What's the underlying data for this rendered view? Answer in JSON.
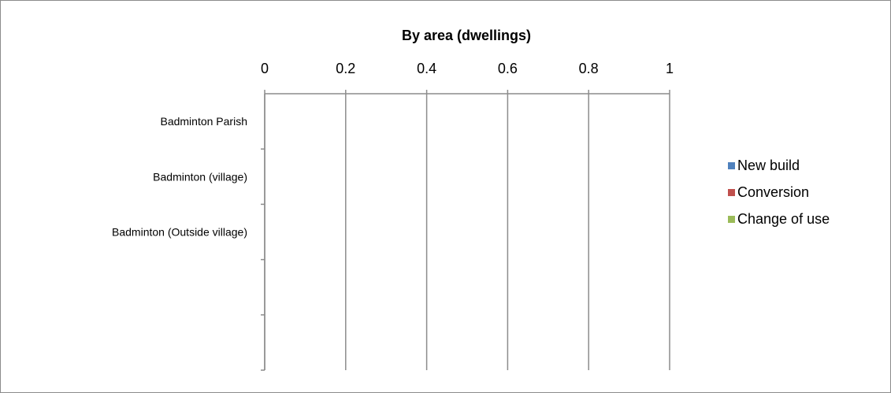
{
  "chart_data": {
    "type": "bar",
    "orientation": "horizontal",
    "stacked": true,
    "title": "By area (dwellings)",
    "categories": [
      "Badminton Parish",
      "Badminton (village)",
      "Badminton (Outside village)",
      "",
      ""
    ],
    "series": [
      {
        "name": "New build",
        "color": "#4f81bd",
        "values": [
          0,
          0,
          0,
          0,
          0
        ]
      },
      {
        "name": "Conversion",
        "color": "#c0504d",
        "values": [
          0,
          0,
          0,
          0,
          0
        ]
      },
      {
        "name": "Change of use",
        "color": "#9bbb59",
        "values": [
          0,
          0,
          0,
          0,
          0
        ]
      }
    ],
    "x_ticks": [
      "0",
      "0.2",
      "0.4",
      "0.6",
      "0.8",
      "1"
    ],
    "xlim": [
      0,
      1
    ],
    "x_axis_position": "top",
    "grid": true,
    "legend": "right"
  }
}
